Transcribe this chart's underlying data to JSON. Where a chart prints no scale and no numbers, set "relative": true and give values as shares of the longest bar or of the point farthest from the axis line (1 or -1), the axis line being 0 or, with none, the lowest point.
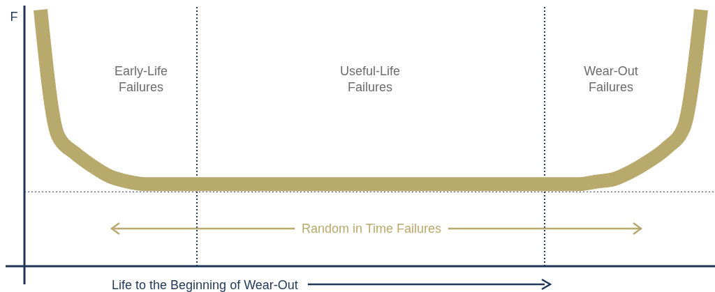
{
  "chart_data": {
    "type": "line",
    "relative": true,
    "ylabel": "F",
    "xlabel": "Life to the Beginning of Wear-Out",
    "categories": [
      null,
      null,
      null,
      null,
      null,
      null,
      null,
      null,
      null,
      null,
      null,
      null,
      null,
      null,
      null,
      null,
      null,
      null,
      null,
      null,
      null,
      null,
      null,
      null,
      null,
      null,
      null,
      null,
      null,
      null,
      null,
      null,
      null,
      null,
      null,
      null,
      null,
      null,
      null
    ],
    "series": [
      {
        "color": "#b8a96c",
        "values": [
          1,
          0.51,
          0.44,
          0.39,
          0.35,
          0.33,
          0.32,
          0.32,
          0.32,
          0.32,
          0.32,
          0.32,
          0.32,
          0.32,
          0.32,
          0.32,
          0.32,
          0.32,
          0.32,
          0.32,
          0.32,
          0.32,
          0.32,
          0.32,
          0.32,
          0.32,
          0.32,
          0.32,
          0.32,
          0.32,
          0.32,
          0.32,
          0.33,
          0.34,
          0.37,
          0.41,
          0.46,
          0.54,
          1
        ]
      }
    ],
    "ref_lines": [
      {
        "axis": "y",
        "value": 0.29,
        "color": "#1f3656",
        "line_style": "dotted"
      }
    ],
    "annotations": [
      "Early-Life\nFailures",
      "Useful-Life\nFailures",
      "Wear-Out\nFailures",
      "Random in Time Failures"
    ]
  }
}
